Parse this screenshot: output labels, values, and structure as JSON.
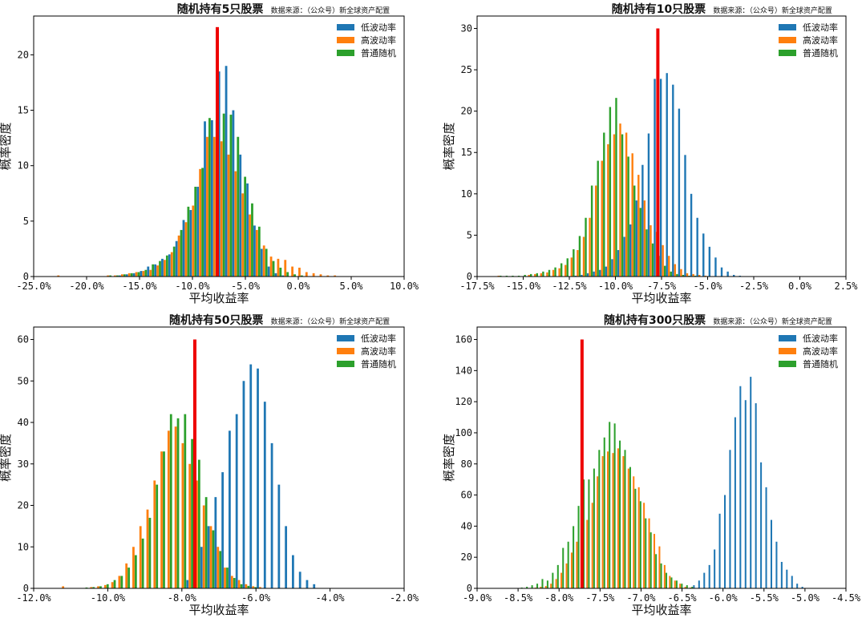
{
  "colors": {
    "low": "#1f77b4",
    "high": "#ff7f0e",
    "random": "#2ca02c",
    "marker": "#ee0000"
  },
  "source_note": "数据来源：（公众号）新全球资产配置",
  "chart_data": [
    {
      "type": "bar",
      "title": "随机持有5只股票",
      "xlabel": "平均收益率",
      "ylabel": "概率密度",
      "xlim": [
        -0.25,
        0.1
      ],
      "ylim": [
        0,
        23.5
      ],
      "xticks": [
        -0.25,
        -0.2,
        -0.15,
        -0.1,
        -0.05,
        0.0,
        0.05,
        0.1
      ],
      "xtick_labels": [
        "-25.0%",
        "-20.0%",
        "-15.0%",
        "-10.0%",
        "-5.0%",
        "0.0%",
        "5.0%",
        "10.0%"
      ],
      "yticks": [
        0,
        5,
        10,
        15,
        20
      ],
      "bin_start": -0.23,
      "bin_width": 0.0067,
      "marker_x": -0.0765,
      "marker_height": 22.5,
      "series": [
        {
          "name": "低波动率",
          "values": [
            0,
            0,
            0,
            0,
            0,
            0,
            0,
            0,
            0,
            0.1,
            0.2,
            0.3,
            0.5,
            0.9,
            1.1,
            1.6,
            2.0,
            3.2,
            5.1,
            6.0,
            8.1,
            14.0,
            14.1,
            18.5,
            19.0,
            15.0,
            11.0,
            8.4,
            4.6,
            2.5,
            0.9,
            0.3,
            0.1,
            0,
            0,
            0,
            0,
            0,
            0,
            0,
            0,
            0,
            0,
            0,
            0,
            0,
            0,
            0,
            0,
            0,
            0,
            0,
            0
          ]
        },
        {
          "name": "高波动率",
          "values": [
            0.1,
            0,
            0,
            0,
            0,
            0,
            0,
            0.1,
            0.1,
            0.2,
            0.3,
            0.4,
            0.5,
            0.6,
            1.0,
            1.5,
            2.2,
            3.7,
            4.9,
            6.4,
            9.7,
            12.6,
            12.6,
            12.2,
            11.0,
            9.5,
            7.5,
            5.6,
            4.2,
            2.8,
            1.8,
            1.6,
            1.5,
            0.9,
            0.8,
            0.4,
            0.3,
            0.2,
            0.1,
            0.1,
            0,
            0,
            0,
            0,
            0,
            0,
            0,
            0,
            0,
            0,
            0,
            0,
            0
          ]
        },
        {
          "name": "普通随机",
          "values": [
            0,
            0,
            0,
            0,
            0,
            0,
            0,
            0.1,
            0.1,
            0.2,
            0.3,
            0.4,
            0.6,
            1.1,
            1.4,
            1.9,
            2.7,
            4.2,
            6.3,
            8.1,
            9.8,
            14.3,
            14.1,
            14.7,
            14.6,
            12.6,
            9.0,
            6.6,
            4.5,
            2.5,
            1.4,
            0.8,
            0.4,
            0.2,
            0.1,
            0,
            0,
            0,
            0,
            0,
            0,
            0,
            0,
            0,
            0,
            0,
            0,
            0,
            0,
            0,
            0,
            0,
            0
          ]
        }
      ],
      "legend": "top-right"
    },
    {
      "type": "bar",
      "title": "随机持有10只股票",
      "xlabel": "平均收益率",
      "ylabel": "概率密度",
      "xlim": [
        -0.175,
        0.025
      ],
      "ylim": [
        0,
        31.5
      ],
      "xticks": [
        -0.175,
        -0.15,
        -0.125,
        -0.1,
        -0.075,
        -0.05,
        -0.025,
        0.0,
        0.025
      ],
      "xtick_labels": [
        "-17.5%",
        "-15.0%",
        "-12.5%",
        "-10.0%",
        "-7.5%",
        "-5.0%",
        "-2.5%",
        "0.0%",
        "2.5%"
      ],
      "yticks": [
        0,
        5,
        10,
        15,
        20,
        25,
        30
      ],
      "bin_start": -0.165,
      "bin_width": 0.0033,
      "marker_x": -0.077,
      "marker_height": 30,
      "series": [
        {
          "name": "低波动率",
          "values": [
            0,
            0,
            0,
            0,
            0,
            0,
            0,
            0,
            0,
            0,
            0,
            0,
            0,
            0.1,
            0.2,
            0.4,
            0.6,
            0.8,
            1.2,
            2.1,
            3.2,
            4.8,
            6.3,
            9.2,
            13.5,
            17.3,
            23.9,
            23.9,
            24.6,
            23.2,
            20.3,
            14.7,
            10.0,
            7.1,
            5.2,
            3.6,
            2.3,
            1.1,
            0.6,
            0.2,
            0.1,
            0,
            0,
            0,
            0,
            0,
            0,
            0,
            0,
            0,
            0,
            0,
            0,
            0,
            0,
            0,
            0,
            0,
            0,
            0,
            0,
            0
          ]
        },
        {
          "name": "高波动率",
          "values": [
            0.1,
            0,
            0,
            0,
            0,
            0.2,
            0.3,
            0.4,
            0.5,
            0.8,
            1.0,
            1.4,
            2.3,
            3.2,
            4.8,
            7.1,
            11.0,
            14.0,
            16.0,
            17.2,
            18.5,
            17.4,
            14.9,
            12.3,
            9.2,
            6.2,
            5.4,
            3.8,
            2.5,
            1.5,
            0.9,
            0.4,
            0.3,
            0.2,
            0.1,
            0,
            0,
            0,
            0,
            0,
            0,
            0,
            0,
            0,
            0,
            0,
            0,
            0,
            0,
            0,
            0,
            0,
            0,
            0,
            0,
            0,
            0,
            0,
            0,
            0,
            0,
            0
          ]
        },
        {
          "name": "普通随机",
          "values": [
            0.1,
            0.1,
            0.1,
            0.1,
            0.2,
            0.3,
            0.4,
            0.6,
            0.8,
            1.1,
            1.6,
            2.2,
            3.3,
            4.9,
            7.1,
            11.0,
            14.0,
            17.4,
            20.5,
            21.6,
            17.2,
            14.5,
            11.0,
            8.3,
            5.7,
            4.0,
            2.5,
            1.3,
            0.6,
            0.3,
            0.2,
            0.1,
            0.1,
            0,
            0,
            0,
            0,
            0,
            0,
            0,
            0,
            0,
            0,
            0,
            0,
            0,
            0,
            0,
            0,
            0,
            0,
            0,
            0,
            0,
            0,
            0,
            0,
            0,
            0,
            0,
            0,
            0
          ]
        }
      ],
      "legend": "top-right"
    },
    {
      "type": "bar",
      "title": "随机持有50只股票",
      "xlabel": "平均收益率",
      "ylabel": "概率密度",
      "xlim": [
        -0.12,
        -0.02
      ],
      "ylim": [
        0,
        63
      ],
      "xticks": [
        -0.12,
        -0.1,
        -0.08,
        -0.06,
        -0.04,
        -0.02
      ],
      "xtick_labels": [
        "-12.0%",
        "-10.0%",
        "-8.0%",
        "-6.0%",
        "-4.0%",
        "-2.0%"
      ],
      "yticks": [
        0,
        10,
        20,
        30,
        40,
        50,
        60
      ],
      "bin_start": -0.113,
      "bin_width": 0.0019,
      "marker_x": -0.0765,
      "marker_height": 60,
      "series": [
        {
          "name": "低波动率",
          "values": [
            0,
            0,
            0,
            0,
            0,
            0,
            0,
            0,
            0,
            0,
            0,
            0,
            0,
            0,
            0,
            0,
            0,
            0,
            2.0,
            4.0,
            10.0,
            15.0,
            22.0,
            28.0,
            38.0,
            42.0,
            50.0,
            54.0,
            53.0,
            45.0,
            35.0,
            25.0,
            15.0,
            8.0,
            4.0,
            2.0,
            1.0,
            0,
            0,
            0,
            0,
            0,
            0,
            0,
            0,
            0,
            0,
            0,
            0,
            0,
            0,
            0,
            0,
            0
          ]
        },
        {
          "name": "高波动率",
          "values": [
            0.5,
            0,
            0,
            0,
            0.3,
            0.5,
            0.8,
            1.5,
            3.0,
            6.0,
            10.0,
            15.0,
            19.0,
            26.0,
            33.0,
            38.0,
            39.0,
            35.0,
            30.0,
            26.0,
            20.0,
            15.0,
            10.0,
            5.0,
            3.0,
            2.0,
            1.0,
            0.5,
            0.3,
            0,
            0,
            0,
            0,
            0,
            0,
            0,
            0,
            0,
            0,
            0,
            0,
            0,
            0,
            0,
            0,
            0,
            0,
            0,
            0,
            0,
            0,
            0,
            0,
            0
          ]
        },
        {
          "name": "普通随机",
          "values": [
            0,
            0,
            0,
            0.2,
            0.3,
            0.5,
            1.0,
            2.0,
            3.0,
            5.0,
            8.0,
            12.0,
            17.0,
            25.0,
            33.0,
            42.0,
            41.0,
            42.0,
            36.0,
            31.0,
            22.0,
            14.0,
            9.0,
            5.0,
            2.5,
            1.0,
            0.6,
            0.3,
            0,
            0,
            0,
            0,
            0,
            0,
            0,
            0,
            0,
            0,
            0,
            0,
            0,
            0,
            0,
            0,
            0,
            0,
            0,
            0,
            0,
            0,
            0,
            0,
            0,
            0
          ]
        }
      ],
      "legend": "top-right"
    },
    {
      "type": "bar",
      "title": "随机持有300只股票",
      "xlabel": "平均收益率",
      "ylabel": "概率密度",
      "xlim": [
        -0.09,
        -0.045
      ],
      "ylim": [
        0,
        168
      ],
      "xticks": [
        -0.09,
        -0.085,
        -0.08,
        -0.075,
        -0.07,
        -0.065,
        -0.06,
        -0.055,
        -0.05,
        -0.045
      ],
      "xtick_labels": [
        "-9.0%",
        "-8.5%",
        "-8.0%",
        "-7.5%",
        "-7.0%",
        "-6.5%",
        "-6.0%",
        "-5.5%",
        "-5.0%",
        "-4.5%"
      ],
      "yticks": [
        0,
        20,
        40,
        60,
        80,
        100,
        120,
        140,
        160
      ],
      "bin_start": -0.0857,
      "bin_width": 0.00063,
      "marker_x": -0.0772,
      "marker_height": 160,
      "series": [
        {
          "name": "低波动率",
          "values": [
            0,
            0,
            0,
            0,
            0,
            0,
            0,
            0,
            0,
            0,
            0,
            0,
            0,
            0,
            0,
            0,
            0,
            0,
            0,
            0,
            0,
            0,
            0,
            0,
            0,
            0,
            0,
            0,
            0,
            0,
            0,
            0,
            0,
            0,
            0,
            2,
            5,
            10,
            15,
            25,
            48,
            60,
            89,
            110,
            130,
            121,
            136,
            119,
            81,
            65,
            44,
            30,
            17,
            12,
            8,
            3,
            1,
            0,
            0,
            0,
            0
          ]
        },
        {
          "name": "高波动率",
          "values": [
            0,
            0,
            0,
            0,
            0.5,
            1,
            1.5,
            3,
            6,
            10,
            16,
            23,
            30,
            36,
            44,
            55,
            72,
            85,
            88,
            87,
            90,
            85,
            77,
            72,
            65,
            55,
            45,
            35,
            27,
            15,
            8,
            5,
            3,
            1,
            0.5,
            0,
            0,
            0,
            0,
            0,
            0,
            0,
            0,
            0,
            0,
            0,
            0,
            0,
            0,
            0,
            0,
            0,
            0,
            0,
            0,
            0,
            0,
            0,
            0,
            0,
            0
          ]
        },
        {
          "name": "普通随机",
          "values": [
            0,
            0.5,
            1,
            2,
            3,
            6,
            5,
            10,
            15,
            26,
            30,
            40,
            53,
            70,
            70,
            77,
            89,
            97,
            107,
            106,
            95,
            89,
            78,
            64,
            56,
            45,
            36,
            22,
            16,
            10,
            7,
            5,
            3,
            2,
            1,
            0,
            0,
            0,
            0,
            0,
            0,
            0,
            0,
            0,
            0,
            0,
            0,
            0,
            0,
            0,
            0,
            0,
            0,
            0,
            0,
            0,
            0,
            0,
            0,
            0,
            0
          ]
        }
      ],
      "legend": "top-right"
    }
  ]
}
